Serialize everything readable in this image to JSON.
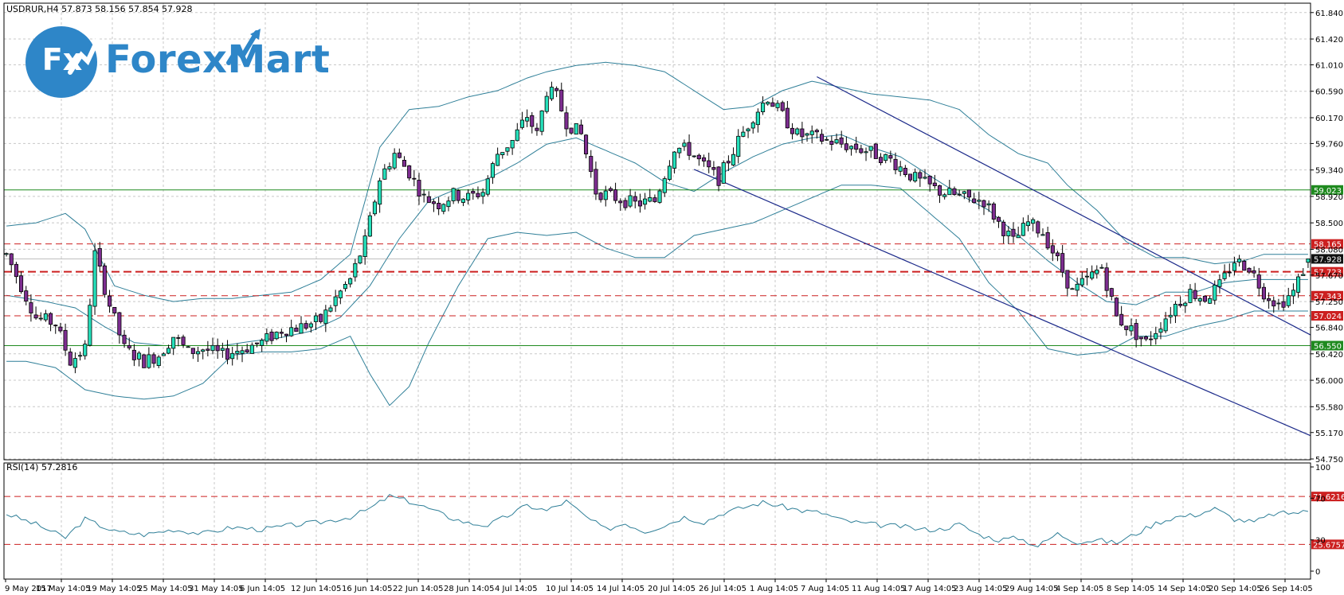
{
  "header": {
    "text": "USDRUR,H4  57.873 58.156 57.854 57.928"
  },
  "logo": {
    "fx": "Fx",
    "brand": "ForexMart"
  },
  "rsi": {
    "title": "RSI(14) 57.2816"
  },
  "colors": {
    "bull": "#26e0bb",
    "bear": "#7d2d90",
    "band": "#2f7f98",
    "channel": "#1c2a8a",
    "support": "#1f8a1f",
    "resistance": "#cc2020",
    "grid": "#c8c8c8"
  },
  "chart_data": [
    {
      "type": "candlestick",
      "title": "USDRUR,H4",
      "ylim": [
        54.75,
        61.85
      ],
      "price_ticks": [
        "61.840",
        "61.420",
        "61.010",
        "60.590",
        "60.170",
        "59.760",
        "59.340",
        "58.920",
        "58.500",
        "58.080",
        "57.670",
        "57.250",
        "56.840",
        "56.420",
        "56.000",
        "55.580",
        "55.170",
        "54.750"
      ],
      "x_labels": [
        "9 May 2017",
        "15 May 14:05",
        "19 May 14:05",
        "25 May 14:05",
        "31 May 14:05",
        "6 Jun 14:05",
        "12 Jun 14:05",
        "16 Jun 14:05",
        "22 Jun 14:05",
        "28 Jun 14:05",
        "4 Jul 14:05",
        "10 Jul 14:05",
        "14 Jul 14:05",
        "20 Jul 14:05",
        "26 Jul 14:05",
        "1 Aug 14:05",
        "7 Aug 14:05",
        "11 Aug 14:05",
        "17 Aug 14:05",
        "23 Aug 14:05",
        "29 Aug 14:05",
        "4 Sep 14:05",
        "8 Sep 14:05",
        "14 Sep 14:05",
        "20 Sep 14:05",
        "26 Sep 14:05"
      ],
      "levels": [
        {
          "value": 59.023,
          "label": "59.023",
          "style": "solid",
          "color": "#1f8a1f"
        },
        {
          "value": 58.165,
          "label": "58.165",
          "style": "dashed",
          "color": "#cc2020"
        },
        {
          "value": 57.928,
          "label": "57.928",
          "style": "current",
          "color": "#111111"
        },
        {
          "value": 57.723,
          "label": "57.723",
          "style": "dashed-bold",
          "color": "#cc2020"
        },
        {
          "value": 57.343,
          "label": "57.343",
          "style": "dashed",
          "color": "#cc2020"
        },
        {
          "value": 57.024,
          "label": "57.024",
          "style": "dashed",
          "color": "#cc2020"
        },
        {
          "value": 56.55,
          "label": "56.550",
          "style": "solid",
          "color": "#1f8a1f"
        }
      ],
      "channel_lines": [
        {
          "x": [
            165,
            260
          ],
          "y": [
            60.82,
            56.72
          ]
        },
        {
          "x": [
            140,
            260
          ],
          "y": [
            59.35,
            55.12
          ]
        }
      ],
      "bollinger": {
        "upper_anchors": [
          [
            0,
            58.45
          ],
          [
            6,
            58.5
          ],
          [
            12,
            58.65
          ],
          [
            16,
            58.4
          ],
          [
            22,
            57.5
          ],
          [
            28,
            57.35
          ],
          [
            34,
            57.25
          ],
          [
            40,
            57.3
          ],
          [
            46,
            57.3
          ],
          [
            52,
            57.35
          ],
          [
            58,
            57.4
          ],
          [
            64,
            57.6
          ],
          [
            70,
            58.0
          ],
          [
            76,
            59.7
          ],
          [
            82,
            60.3
          ],
          [
            88,
            60.35
          ],
          [
            94,
            60.5
          ],
          [
            100,
            60.6
          ],
          [
            106,
            60.8
          ],
          [
            110,
            60.9
          ],
          [
            116,
            61.0
          ],
          [
            122,
            61.05
          ],
          [
            128,
            61.0
          ],
          [
            134,
            60.9
          ],
          [
            140,
            60.6
          ],
          [
            146,
            60.3
          ],
          [
            152,
            60.35
          ],
          [
            158,
            60.6
          ],
          [
            164,
            60.75
          ],
          [
            170,
            60.65
          ],
          [
            176,
            60.55
          ],
          [
            182,
            60.5
          ],
          [
            188,
            60.45
          ],
          [
            194,
            60.3
          ],
          [
            200,
            59.9
          ],
          [
            206,
            59.6
          ],
          [
            212,
            59.45
          ],
          [
            216,
            59.1
          ],
          [
            222,
            58.7
          ],
          [
            228,
            58.2
          ],
          [
            234,
            57.95
          ],
          [
            240,
            57.95
          ],
          [
            246,
            57.85
          ],
          [
            252,
            57.9
          ],
          [
            256,
            58.0
          ]
        ],
        "middle_anchors": [
          [
            0,
            57.35
          ],
          [
            8,
            57.25
          ],
          [
            14,
            57.15
          ],
          [
            20,
            56.85
          ],
          [
            26,
            56.6
          ],
          [
            32,
            56.55
          ],
          [
            38,
            56.55
          ],
          [
            44,
            56.55
          ],
          [
            50,
            56.62
          ],
          [
            56,
            56.68
          ],
          [
            62,
            56.78
          ],
          [
            68,
            57.0
          ],
          [
            74,
            57.5
          ],
          [
            80,
            58.25
          ],
          [
            86,
            58.85
          ],
          [
            92,
            59.05
          ],
          [
            98,
            59.2
          ],
          [
            104,
            59.45
          ],
          [
            110,
            59.75
          ],
          [
            116,
            59.85
          ],
          [
            122,
            59.65
          ],
          [
            128,
            59.45
          ],
          [
            134,
            59.15
          ],
          [
            140,
            59.0
          ],
          [
            146,
            59.3
          ],
          [
            152,
            59.55
          ],
          [
            158,
            59.75
          ],
          [
            164,
            59.85
          ],
          [
            170,
            59.9
          ],
          [
            176,
            59.7
          ],
          [
            182,
            59.55
          ],
          [
            188,
            59.25
          ],
          [
            194,
            58.95
          ],
          [
            200,
            58.7
          ],
          [
            206,
            58.3
          ],
          [
            212,
            57.9
          ],
          [
            218,
            57.55
          ],
          [
            224,
            57.25
          ],
          [
            230,
            57.2
          ],
          [
            236,
            57.4
          ],
          [
            242,
            57.4
          ],
          [
            248,
            57.55
          ],
          [
            254,
            57.6
          ]
        ],
        "lower_anchors": [
          [
            0,
            56.3
          ],
          [
            4,
            56.3
          ],
          [
            10,
            56.2
          ],
          [
            16,
            55.85
          ],
          [
            22,
            55.75
          ],
          [
            28,
            55.7
          ],
          [
            34,
            55.75
          ],
          [
            40,
            55.95
          ],
          [
            46,
            56.4
          ],
          [
            52,
            56.45
          ],
          [
            58,
            56.45
          ],
          [
            64,
            56.5
          ],
          [
            70,
            56.7
          ],
          [
            74,
            56.1
          ],
          [
            78,
            55.6
          ],
          [
            82,
            55.9
          ],
          [
            86,
            56.6
          ],
          [
            92,
            57.5
          ],
          [
            98,
            58.25
          ],
          [
            104,
            58.35
          ],
          [
            110,
            58.3
          ],
          [
            116,
            58.35
          ],
          [
            122,
            58.1
          ],
          [
            128,
            57.95
          ],
          [
            134,
            57.95
          ],
          [
            140,
            58.3
          ],
          [
            146,
            58.4
          ],
          [
            152,
            58.5
          ],
          [
            158,
            58.7
          ],
          [
            164,
            58.9
          ],
          [
            170,
            59.1
          ],
          [
            176,
            59.1
          ],
          [
            182,
            59.05
          ],
          [
            188,
            58.65
          ],
          [
            194,
            58.25
          ],
          [
            200,
            57.55
          ],
          [
            206,
            57.1
          ],
          [
            212,
            56.5
          ],
          [
            218,
            56.4
          ],
          [
            224,
            56.45
          ],
          [
            230,
            56.7
          ],
          [
            236,
            56.7
          ],
          [
            242,
            56.85
          ],
          [
            248,
            56.95
          ],
          [
            254,
            57.1
          ]
        ]
      },
      "candle_anchors": [
        [
          0,
          58.0
        ],
        [
          3,
          57.5
        ],
        [
          6,
          57.0
        ],
        [
          10,
          56.9
        ],
        [
          13,
          56.3
        ],
        [
          16,
          56.5
        ],
        [
          18,
          58.0
        ],
        [
          21,
          57.2
        ],
        [
          24,
          56.5
        ],
        [
          28,
          56.3
        ],
        [
          31,
          56.4
        ],
        [
          34,
          56.7
        ],
        [
          37,
          56.45
        ],
        [
          40,
          56.5
        ],
        [
          44,
          56.4
        ],
        [
          48,
          56.5
        ],
        [
          52,
          56.6
        ],
        [
          56,
          56.8
        ],
        [
          60,
          56.85
        ],
        [
          64,
          56.95
        ],
        [
          67,
          57.3
        ],
        [
          70,
          57.6
        ],
        [
          73,
          58.2
        ],
        [
          76,
          59.2
        ],
        [
          79,
          59.6
        ],
        [
          82,
          59.3
        ],
        [
          85,
          58.9
        ],
        [
          88,
          58.8
        ],
        [
          91,
          58.95
        ],
        [
          94,
          58.9
        ],
        [
          97,
          59.0
        ],
        [
          100,
          59.6
        ],
        [
          103,
          59.8
        ],
        [
          106,
          60.2
        ],
        [
          108,
          59.9
        ],
        [
          110,
          60.6
        ],
        [
          112,
          60.5
        ],
        [
          114,
          60.1
        ],
        [
          117,
          59.9
        ],
        [
          120,
          59.0
        ],
        [
          124,
          58.9
        ],
        [
          128,
          58.8
        ],
        [
          132,
          58.85
        ],
        [
          136,
          59.7
        ],
        [
          139,
          59.65
        ],
        [
          142,
          59.4
        ],
        [
          145,
          59.2
        ],
        [
          149,
          59.8
        ],
        [
          152,
          60.2
        ],
        [
          155,
          60.5
        ],
        [
          158,
          60.2
        ],
        [
          161,
          59.9
        ],
        [
          165,
          59.85
        ],
        [
          170,
          59.75
        ],
        [
          175,
          59.65
        ],
        [
          180,
          59.5
        ],
        [
          185,
          59.2
        ],
        [
          190,
          59.0
        ],
        [
          195,
          58.9
        ],
        [
          199,
          58.85
        ],
        [
          202,
          58.5
        ],
        [
          205,
          58.2
        ],
        [
          208,
          58.5
        ],
        [
          211,
          58.35
        ],
        [
          214,
          57.9
        ],
        [
          217,
          57.4
        ],
        [
          220,
          57.6
        ],
        [
          223,
          57.8
        ],
        [
          226,
          57.0
        ],
        [
          229,
          56.8
        ],
        [
          232,
          56.6
        ],
        [
          235,
          56.9
        ],
        [
          238,
          57.2
        ],
        [
          241,
          57.4
        ],
        [
          244,
          57.3
        ],
        [
          247,
          57.5
        ],
        [
          250,
          57.9
        ],
        [
          253,
          57.8
        ],
        [
          256,
          57.4
        ],
        [
          259,
          57.2
        ],
        [
          262,
          57.4
        ],
        [
          265,
          57.93
        ]
      ],
      "rsi": {
        "title": "RSI(14) 57.2816",
        "ylim": [
          0,
          100
        ],
        "levels": [
          71.6216,
          25.6757
        ],
        "level_labels": [
          "71.6216",
          "25.6757"
        ],
        "ticks": [
          "100",
          "70",
          "30",
          "0"
        ],
        "anchors": [
          [
            0,
            55
          ],
          [
            6,
            45
          ],
          [
            12,
            32
          ],
          [
            16,
            50
          ],
          [
            22,
            38
          ],
          [
            28,
            35
          ],
          [
            34,
            40
          ],
          [
            40,
            36
          ],
          [
            46,
            42
          ],
          [
            52,
            40
          ],
          [
            58,
            44
          ],
          [
            64,
            47
          ],
          [
            70,
            52
          ],
          [
            74,
            60
          ],
          [
            78,
            72
          ],
          [
            82,
            67
          ],
          [
            86,
            60
          ],
          [
            90,
            52
          ],
          [
            94,
            46
          ],
          [
            98,
            44
          ],
          [
            102,
            53
          ],
          [
            106,
            63
          ],
          [
            110,
            58
          ],
          [
            114,
            67
          ],
          [
            118,
            52
          ],
          [
            122,
            40
          ],
          [
            126,
            46
          ],
          [
            130,
            38
          ],
          [
            134,
            44
          ],
          [
            138,
            52
          ],
          [
            142,
            47
          ],
          [
            146,
            56
          ],
          [
            150,
            61
          ],
          [
            154,
            66
          ],
          [
            158,
            62
          ],
          [
            162,
            58
          ],
          [
            166,
            56
          ],
          [
            170,
            49
          ],
          [
            174,
            46
          ],
          [
            178,
            44
          ],
          [
            182,
            43
          ],
          [
            186,
            40
          ],
          [
            190,
            40
          ],
          [
            194,
            45
          ],
          [
            198,
            35
          ],
          [
            202,
            30
          ],
          [
            206,
            32
          ],
          [
            210,
            24
          ],
          [
            214,
            36
          ],
          [
            218,
            28
          ],
          [
            222,
            30
          ],
          [
            226,
            27
          ],
          [
            230,
            36
          ],
          [
            234,
            46
          ],
          [
            238,
            52
          ],
          [
            242,
            54
          ],
          [
            246,
            60
          ],
          [
            250,
            50
          ],
          [
            254,
            47
          ],
          [
            258,
            55
          ],
          [
            262,
            56
          ],
          [
            265,
            57.28
          ]
        ]
      }
    }
  ]
}
